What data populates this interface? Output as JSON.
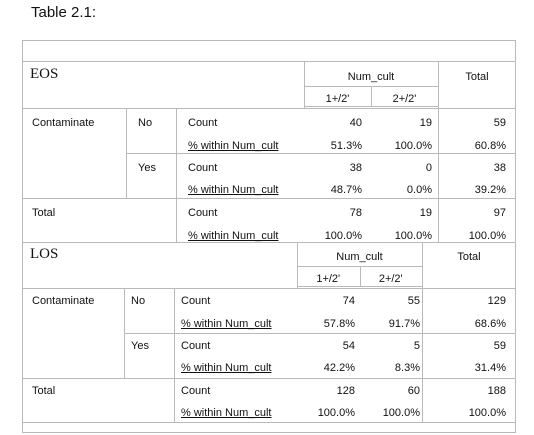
{
  "caption": "Table 2.1:",
  "tables": [
    {
      "title": "EOS",
      "col_group": "Num_cult",
      "col_total": "Total",
      "col1": "1+/2'",
      "col2": "2+/2'",
      "rows": [
        {
          "group": "Contaminate",
          "sub": "No",
          "stat": "Count",
          "v1": "40",
          "v2": "19",
          "tot": "59"
        },
        {
          "group": "",
          "sub": "",
          "stat": "% within Num_cult",
          "v1": "51.3%",
          "v2": "100.0%",
          "tot": "60.8%"
        },
        {
          "group": "",
          "sub": "Yes",
          "stat": "Count",
          "v1": "38",
          "v2": "0",
          "tot": "38"
        },
        {
          "group": "",
          "sub": "",
          "stat": "% within Num_cult",
          "v1": "48.7%",
          "v2": "0.0%",
          "tot": "39.2%"
        },
        {
          "group": "Total",
          "sub": "",
          "stat": "Count",
          "v1": "78",
          "v2": "19",
          "tot": "97"
        },
        {
          "group": "",
          "sub": "",
          "stat": "% within Num_cult",
          "v1": "100.0%",
          "v2": "100.0%",
          "tot": "100.0%"
        }
      ]
    },
    {
      "title": "LOS",
      "col_group": "Num_cult",
      "col_total": "Total",
      "col1": "1+/2'",
      "col2": "2+/2'",
      "rows": [
        {
          "group": "Contaminate",
          "sub": "No",
          "stat": "Count",
          "v1": "74",
          "v2": "55",
          "tot": "129"
        },
        {
          "group": "",
          "sub": "",
          "stat": "% within Num_cult",
          "v1": "57.8%",
          "v2": "91.7%",
          "tot": "68.6%"
        },
        {
          "group": "",
          "sub": "Yes",
          "stat": "Count",
          "v1": "54",
          "v2": "5",
          "tot": "59"
        },
        {
          "group": "",
          "sub": "",
          "stat": "% within Num_cult",
          "v1": "42.2%",
          "v2": "8.3%",
          "tot": "31.4%"
        },
        {
          "group": "Total",
          "sub": "",
          "stat": "Count",
          "v1": "128",
          "v2": "60",
          "tot": "188"
        },
        {
          "group": "",
          "sub": "",
          "stat": "% within Num_cult",
          "v1": "100.0%",
          "v2": "100.0%",
          "tot": "100.0%"
        }
      ]
    }
  ]
}
